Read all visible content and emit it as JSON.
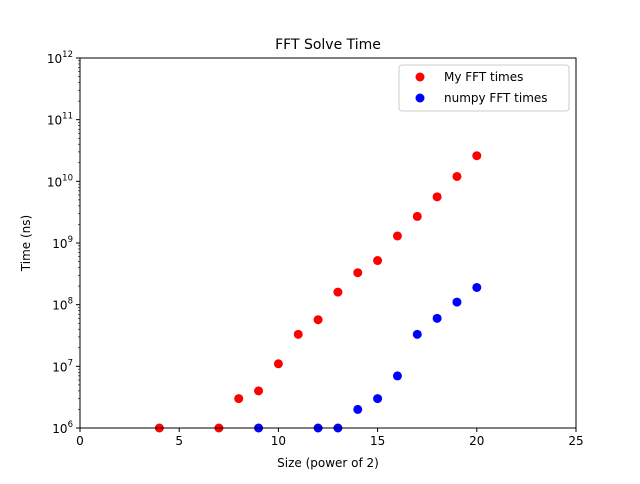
{
  "chart_data": {
    "type": "scatter",
    "title": "FFT Solve Time",
    "xlabel": "Size (power of 2)",
    "ylabel": "Time (ns)",
    "xlim": [
      0,
      25
    ],
    "ylim": [
      1000000,
      1000000000000
    ],
    "yscale": "log",
    "x_ticks": [
      0,
      5,
      10,
      15,
      20,
      25
    ],
    "x_tick_labels": [
      "0",
      "5",
      "10",
      "15",
      "20",
      "25"
    ],
    "y_ticks": [
      1000000,
      10000000,
      100000000,
      1000000000,
      10000000000,
      100000000000,
      1000000000000
    ],
    "y_tick_labels": [
      {
        "base": "10",
        "exp": "6"
      },
      {
        "base": "10",
        "exp": "7"
      },
      {
        "base": "10",
        "exp": "8"
      },
      {
        "base": "10",
        "exp": "9"
      },
      {
        "base": "10",
        "exp": "10"
      },
      {
        "base": "10",
        "exp": "11"
      },
      {
        "base": "10",
        "exp": "12"
      }
    ],
    "legend_position": "top-right",
    "series": [
      {
        "name": "My FFT times",
        "color": "#ff0000",
        "points": [
          [
            4,
            1000000
          ],
          [
            7,
            1000000
          ],
          [
            8,
            3000000
          ],
          [
            9,
            4000000
          ],
          [
            10,
            11000000
          ],
          [
            11,
            33000000
          ],
          [
            12,
            57000000
          ],
          [
            13,
            160000000
          ],
          [
            14,
            330000000
          ],
          [
            15,
            520000000
          ],
          [
            16,
            1300000000
          ],
          [
            17,
            2700000000
          ],
          [
            18,
            5600000000
          ],
          [
            19,
            12000000000
          ],
          [
            20,
            26000000000
          ]
        ]
      },
      {
        "name": "numpy FFT times",
        "color": "#0000ff",
        "points": [
          [
            9,
            1000000
          ],
          [
            12,
            1000000
          ],
          [
            13,
            1000000
          ],
          [
            14,
            2000000
          ],
          [
            15,
            3000000
          ],
          [
            16,
            7000000
          ],
          [
            17,
            33000000
          ],
          [
            18,
            60000000
          ],
          [
            19,
            110000000
          ],
          [
            20,
            190000000
          ]
        ]
      }
    ]
  }
}
